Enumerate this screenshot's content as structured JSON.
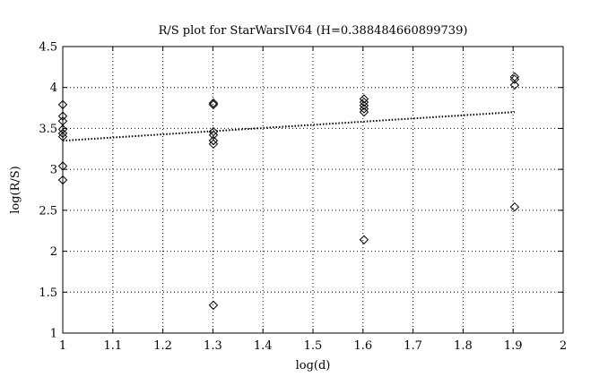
{
  "chart_data": {
    "type": "scatter",
    "title": "R/S plot for StarWarsIV64 (H=0.388484660899739)",
    "xlabel": "log(d)",
    "ylabel": "log(R/S)",
    "xlim": [
      1,
      2
    ],
    "ylim": [
      1,
      4.5
    ],
    "grid": true,
    "x_ticks": [
      1,
      1.1,
      1.2,
      1.3,
      1.4,
      1.5,
      1.6,
      1.7,
      1.8,
      1.9,
      2
    ],
    "x_tick_labels": [
      "1",
      "1.1",
      "1.2",
      "1.3",
      "1.4",
      "1.5",
      "1.6",
      "1.7",
      "1.8",
      "1.9",
      "2"
    ],
    "y_ticks": [
      1,
      1.5,
      2,
      2.5,
      3,
      3.5,
      4,
      4.5
    ],
    "y_tick_labels": [
      "1",
      "1.5",
      "2",
      "2.5",
      "3",
      "3.5",
      "4",
      "4.5"
    ],
    "marker": "diamond",
    "points": [
      {
        "x": 1.0,
        "y": 3.79
      },
      {
        "x": 1.0,
        "y": 3.65
      },
      {
        "x": 1.0,
        "y": 3.59
      },
      {
        "x": 1.0,
        "y": 3.49
      },
      {
        "x": 1.0,
        "y": 3.44
      },
      {
        "x": 1.0,
        "y": 3.4
      },
      {
        "x": 1.0,
        "y": 3.04
      },
      {
        "x": 1.0,
        "y": 2.87
      },
      {
        "x": 1.301,
        "y": 3.81
      },
      {
        "x": 1.301,
        "y": 3.79
      },
      {
        "x": 1.301,
        "y": 3.46
      },
      {
        "x": 1.301,
        "y": 3.42
      },
      {
        "x": 1.301,
        "y": 3.35
      },
      {
        "x": 1.301,
        "y": 3.31
      },
      {
        "x": 1.301,
        "y": 1.34
      },
      {
        "x": 1.602,
        "y": 3.86
      },
      {
        "x": 1.602,
        "y": 3.82
      },
      {
        "x": 1.602,
        "y": 3.78
      },
      {
        "x": 1.602,
        "y": 3.74
      },
      {
        "x": 1.602,
        "y": 3.7
      },
      {
        "x": 1.602,
        "y": 2.14
      },
      {
        "x": 1.903,
        "y": 4.13
      },
      {
        "x": 1.903,
        "y": 4.1
      },
      {
        "x": 1.903,
        "y": 4.03
      },
      {
        "x": 1.903,
        "y": 2.54
      }
    ],
    "fit_line": {
      "style": "dotted",
      "x": [
        1.0,
        1.903
      ],
      "y": [
        3.35,
        3.7
      ]
    }
  }
}
